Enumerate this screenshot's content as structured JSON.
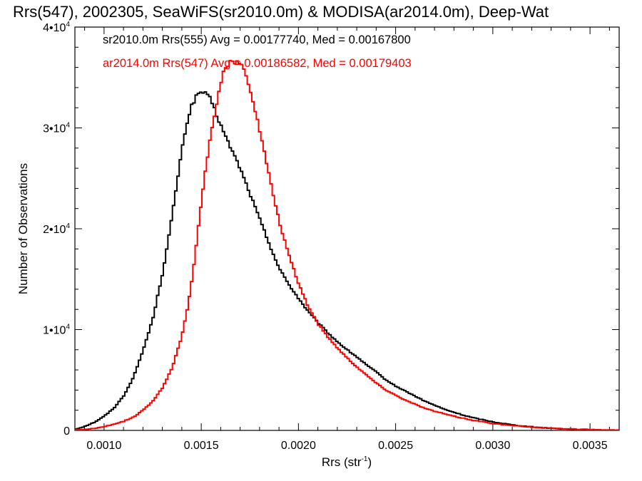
{
  "chart_data": {
    "type": "line",
    "title": "Rrs(547), 2002305, SeaWiFS(sr2010.0m) & MODISA(ar2014.0m), Deep-Wat",
    "xlabel": "Rrs (str",
    "xlabel_sup": "-1",
    "xlabel_close": ")",
    "ylabel": "Number of Observations",
    "xlim": [
      0.00085,
      0.00365
    ],
    "ylim": [
      0,
      40000
    ],
    "grid": false,
    "legend_position": "top-left",
    "x_ticks": [
      {
        "value": 0.001,
        "label": "0.0010"
      },
      {
        "value": 0.0015,
        "label": "0.0015"
      },
      {
        "value": 0.002,
        "label": "0.0020"
      },
      {
        "value": 0.0025,
        "label": "0.0025"
      },
      {
        "value": 0.003,
        "label": "0.0030"
      },
      {
        "value": 0.0035,
        "label": "0.0035"
      }
    ],
    "y_ticks": [
      {
        "value": 0,
        "label": "0",
        "exp": ""
      },
      {
        "value": 10000,
        "label": "1•10",
        "exp": "4"
      },
      {
        "value": 20000,
        "label": "2•10",
        "exp": "4"
      },
      {
        "value": 30000,
        "label": "3•10",
        "exp": "4"
      },
      {
        "value": 40000,
        "label": "4•10",
        "exp": "4"
      }
    ],
    "series": [
      {
        "name": "sr2010.0m Rrs(555)",
        "legend_text": "sr2010.0m Rrs(555) Avg = 0.00177740, Med = 0.00167800",
        "color": "#000000",
        "x": [
          0.00085,
          0.0009,
          0.00095,
          0.001,
          0.00105,
          0.0011,
          0.00115,
          0.0012,
          0.00125,
          0.0013,
          0.00133,
          0.00136,
          0.00139,
          0.00142,
          0.00145,
          0.00148,
          0.0015,
          0.00152,
          0.00155,
          0.00158,
          0.0016,
          0.00163,
          0.00166,
          0.0017,
          0.00175,
          0.0018,
          0.00185,
          0.0019,
          0.00195,
          0.002,
          0.00205,
          0.0021,
          0.00215,
          0.0022,
          0.00225,
          0.0023,
          0.00235,
          0.0024,
          0.00245,
          0.0025,
          0.00255,
          0.0026,
          0.00265,
          0.0027,
          0.00275,
          0.0028,
          0.00285,
          0.0029,
          0.00295,
          0.003,
          0.00305,
          0.0031,
          0.00315,
          0.0032,
          0.00325,
          0.0033,
          0.00335,
          0.0034,
          0.00345,
          0.0035,
          0.00355,
          0.0036,
          0.00365
        ],
        "y": [
          100,
          400,
          800,
          1400,
          2200,
          3400,
          5200,
          7900,
          11000,
          15500,
          18800,
          22500,
          26500,
          30000,
          32200,
          33300,
          33600,
          33400,
          32800,
          31200,
          30300,
          28900,
          27700,
          26000,
          23500,
          21000,
          18500,
          16100,
          14500,
          13100,
          11800,
          10700,
          9700,
          8800,
          8000,
          7300,
          6500,
          5800,
          5000,
          4400,
          3900,
          3400,
          2900,
          2500,
          2100,
          1800,
          1500,
          1250,
          1050,
          850,
          700,
          550,
          450,
          350,
          280,
          220,
          170,
          130,
          100,
          70,
          50,
          30,
          10
        ]
      },
      {
        "name": "ar2014.0m Rrs(547)",
        "legend_text": "ar2014.0m Rrs(547) Avg = 0.00186582, Med = 0.00179403",
        "color": "#ff0000",
        "x": [
          0.00085,
          0.0009,
          0.00095,
          0.001,
          0.00105,
          0.0011,
          0.00115,
          0.0012,
          0.00125,
          0.0013,
          0.00135,
          0.0014,
          0.00143,
          0.00146,
          0.00149,
          0.00152,
          0.00155,
          0.00158,
          0.0016,
          0.00162,
          0.00165,
          0.00168,
          0.0017,
          0.00173,
          0.00176,
          0.0018,
          0.00185,
          0.0019,
          0.00195,
          0.002,
          0.00205,
          0.0021,
          0.00215,
          0.0022,
          0.00225,
          0.0023,
          0.00235,
          0.0024,
          0.00245,
          0.0025,
          0.00255,
          0.0026,
          0.00265,
          0.0027,
          0.00275,
          0.0028,
          0.00285,
          0.0029,
          0.00295,
          0.003,
          0.00305,
          0.0031,
          0.00315,
          0.0032,
          0.00325,
          0.0033,
          0.00335,
          0.0034,
          0.00345,
          0.0035,
          0.00355,
          0.0036,
          0.00365
        ],
        "y": [
          50,
          100,
          200,
          350,
          600,
          900,
          1300,
          2000,
          2900,
          4200,
          6200,
          9300,
          12200,
          16000,
          21000,
          25600,
          29500,
          32500,
          34500,
          35800,
          36500,
          36600,
          36400,
          35400,
          33200,
          29800,
          25200,
          20800,
          17400,
          14600,
          12300,
          10600,
          9300,
          8200,
          7200,
          6300,
          5500,
          4700,
          4000,
          3500,
          3000,
          2600,
          2200,
          1900,
          1650,
          1400,
          1200,
          1000,
          850,
          700,
          580,
          480,
          400,
          330,
          270,
          220,
          180,
          140,
          110,
          80,
          60,
          40,
          20
        ]
      }
    ]
  }
}
